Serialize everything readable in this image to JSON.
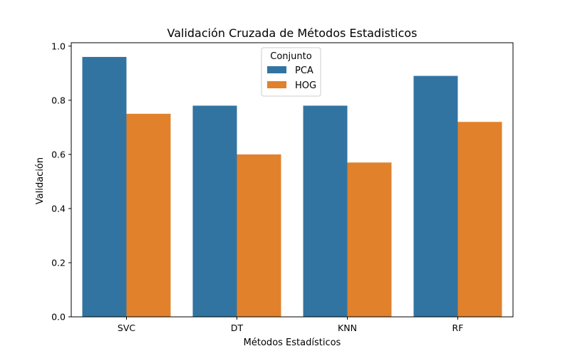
{
  "chart_data": {
    "type": "bar",
    "title": "Validación Cruzada de Métodos Estadisticos",
    "xlabel": "Métodos Estadísticos",
    "ylabel": "Validación",
    "categories": [
      "SVC",
      "DT",
      "KNN",
      "RF"
    ],
    "series": [
      {
        "name": "PCA",
        "values": [
          0.96,
          0.78,
          0.78,
          0.89
        ],
        "color": "#3274a1"
      },
      {
        "name": "HOG",
        "values": [
          0.75,
          0.6,
          0.57,
          0.72
        ],
        "color": "#e1812c"
      }
    ],
    "ylim": [
      0,
      1.0
    ],
    "yticks": [
      "0.0",
      "0.2",
      "0.4",
      "0.6",
      "0.8",
      "1.0"
    ],
    "legend": {
      "title": "Conjunto",
      "placement": "upper-center"
    },
    "grid": false
  }
}
